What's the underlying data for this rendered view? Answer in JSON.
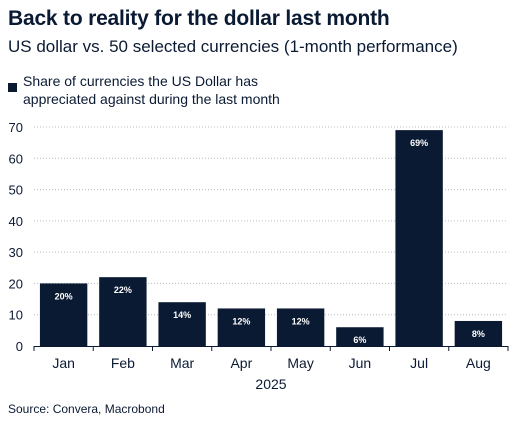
{
  "header": {
    "title": "Back to reality for the dollar last month",
    "subtitle": "US dollar vs. 50 selected currencies (1-month performance)"
  },
  "legend": {
    "label": "Share of currencies the US Dollar has appreciated against during the last month"
  },
  "footer": {
    "source": "Source: Convera, Macrobond"
  },
  "chart_data": {
    "type": "bar",
    "title": "Back to reality for the dollar last month",
    "subtitle": "US dollar vs. 50 selected currencies (1-month performance)",
    "categories": [
      "Jan",
      "Feb",
      "Mar",
      "Apr",
      "May",
      "Jun",
      "Jul",
      "Aug"
    ],
    "series": [
      {
        "name": "Share of currencies the US Dollar has appreciated against during the last month",
        "values": [
          20,
          22,
          14,
          12,
          12,
          6,
          69,
          8
        ],
        "data_labels": [
          "20%",
          "22%",
          "14%",
          "12%",
          "12%",
          "6%",
          "69%",
          "8%"
        ],
        "color": "#0b1a33"
      }
    ],
    "xlabel": "2025",
    "ylabel": "",
    "ylim": [
      0,
      70
    ],
    "yticks": [
      0,
      10,
      20,
      30,
      40,
      50,
      60,
      70
    ],
    "grid": "horizontal dotted",
    "legend_position": "top-left"
  }
}
